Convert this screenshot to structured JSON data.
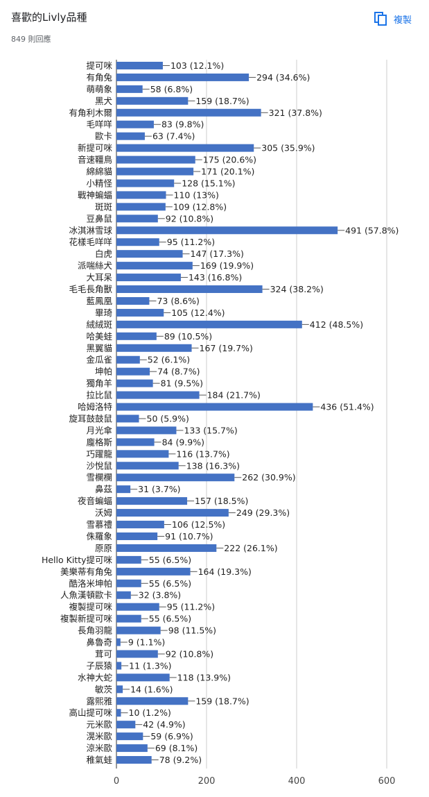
{
  "header": {
    "title": "喜歡的Livly品種",
    "responses": "849 則回應",
    "copy_label": "複製",
    "copy_icon": "copy-icon"
  },
  "colors": {
    "bar": "#4472c4",
    "axis": "#333333",
    "grid": "#cccccc",
    "accent": "#1a73e8"
  },
  "chart_data": {
    "type": "bar",
    "orientation": "horizontal",
    "xlim": [
      0,
      600
    ],
    "xticks": [
      0,
      200,
      400,
      600
    ],
    "grid": true,
    "categories": [
      "提可咪",
      "有角兔",
      "萌萌象",
      "黑犬",
      "有角利木爾",
      "毛咩咩",
      "歐卡",
      "新提可咪",
      "音速韁鳥",
      "綿綿貓",
      "小精怪",
      "戰神蝙蝠",
      "斑斑",
      "豆鼻鼠",
      "冰淇淋雪球",
      "花樣毛咩咩",
      "白虎",
      "派喘絲犬",
      "大耳呆",
      "毛毛長角獸",
      "藍鳳凰",
      "畢琦",
      "絨絨斑",
      "哈美蛙",
      "黑翼貓",
      "金瓜雀",
      "坤帕",
      "獨角羊",
      "拉比鼠",
      "哈姆洛特",
      "旋耳鼓鼓鼠",
      "月光傘",
      "龐格斯",
      "巧躍龍",
      "沙悅鼠",
      "雪欄欄",
      "鼻茲",
      "夜音蝙蝠",
      "沃姆",
      "雪慕禮",
      "侏羅象",
      "原原",
      "Hello Kitty提可咪",
      "美樂蒂有角兔",
      "酷洛米坤帕",
      "人魚漢頓歐卡",
      "複製提可咪",
      "複製新提可咪",
      "長角羽龍",
      "鼻魯奇",
      "茸可",
      "子辰猿",
      "水神大蛇",
      "敏茨",
      "露熙雅",
      "高山提可咪",
      "元米歐",
      "滉米歐",
      "涼米歐",
      "稚氣蛙"
    ],
    "values": [
      103,
      294,
      58,
      159,
      321,
      83,
      63,
      305,
      175,
      171,
      128,
      110,
      109,
      92,
      491,
      95,
      147,
      169,
      143,
      324,
      73,
      105,
      412,
      89,
      167,
      52,
      74,
      81,
      184,
      436,
      50,
      133,
      84,
      116,
      138,
      262,
      31,
      157,
      249,
      106,
      91,
      222,
      55,
      164,
      55,
      32,
      95,
      55,
      98,
      9,
      92,
      11,
      118,
      14,
      159,
      10,
      42,
      59,
      69,
      78
    ],
    "labels": [
      "103 (12.1%)",
      "294 (34.6%)",
      "58 (6.8%)",
      "159 (18.7%)",
      "321 (37.8%)",
      "83 (9.8%)",
      "63 (7.4%)",
      "305 (35.9%)",
      "175 (20.6%)",
      "171 (20.1%)",
      "128 (15.1%)",
      "110 (13%)",
      "109 (12.8%)",
      "92 (10.8%)",
      "491 (57.8%)",
      "95 (11.2%)",
      "147 (17.3%)",
      "169 (19.9%)",
      "143 (16.8%)",
      "324 (38.2%)",
      "73 (8.6%)",
      "105 (12.4%)",
      "412 (48.5%)",
      "89 (10.5%)",
      "167 (19.7%)",
      "52 (6.1%)",
      "74 (8.7%)",
      "81 (9.5%)",
      "184 (21.7%)",
      "436 (51.4%)",
      "50 (5.9%)",
      "133 (15.7%)",
      "84 (9.9%)",
      "116 (13.7%)",
      "138 (16.3%)",
      "262 (30.9%)",
      "31 (3.7%)",
      "157 (18.5%)",
      "249 (29.3%)",
      "106 (12.5%)",
      "91 (10.7%)",
      "222 (26.1%)",
      "55 (6.5%)",
      "164 (19.3%)",
      "55 (6.5%)",
      "32 (3.8%)",
      "95 (11.2%)",
      "55 (6.5%)",
      "98 (11.5%)",
      "9 (1.1%)",
      "92 (10.8%)",
      "11 (1.3%)",
      "118 (13.9%)",
      "14 (1.6%)",
      "159 (18.7%)",
      "10 (1.2%)",
      "42 (4.9%)",
      "59 (6.9%)",
      "69 (8.1%)",
      "78 (9.2%)"
    ]
  }
}
